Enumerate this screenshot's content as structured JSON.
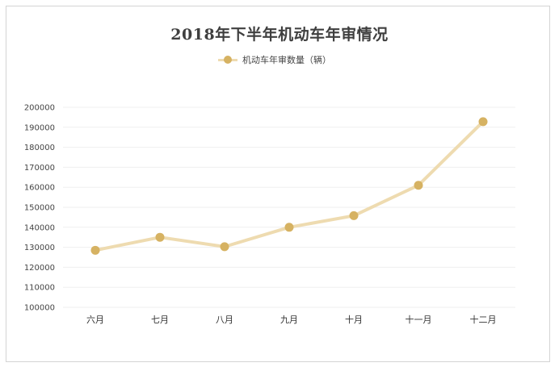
{
  "chart_data": {
    "type": "line",
    "title": "2018年下半年机动车年审情况",
    "categories": [
      "六月",
      "七月",
      "八月",
      "九月",
      "十月",
      "十一月",
      "十二月"
    ],
    "series": [
      {
        "name": "机动车年审数量（辆）",
        "values": [
          128500,
          135000,
          130300,
          140000,
          145800,
          161000,
          192800
        ]
      }
    ],
    "y_ticks": [
      "100000",
      "110000",
      "120000",
      "130000",
      "140000",
      "150000",
      "160000",
      "170000",
      "180000",
      "190000",
      "200000"
    ],
    "ylim": [
      100000,
      200000
    ],
    "xlabel": "",
    "ylabel": "",
    "grid": true,
    "legend_position": "top",
    "colors": {
      "line": "#eedbb0",
      "marker": "#d6b262",
      "grid": "#efefef",
      "frame": "#d4d4d4"
    }
  }
}
